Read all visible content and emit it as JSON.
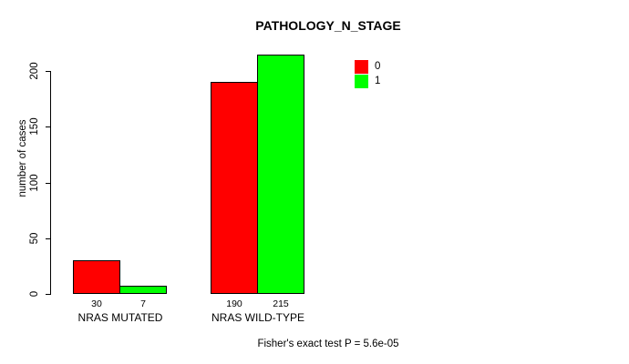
{
  "chart_data": {
    "type": "bar",
    "title": "PATHOLOGY_N_STAGE",
    "ylabel": "number of cases",
    "xlabel": "",
    "categories": [
      "NRAS MUTATED",
      "NRAS WILD-TYPE"
    ],
    "series": [
      {
        "name": "0",
        "color": "#ff0000",
        "values": [
          30,
          190
        ]
      },
      {
        "name": "1",
        "color": "#00ff00",
        "values": [
          7,
          215
        ]
      }
    ],
    "yticks": [
      0,
      50,
      100,
      150,
      200
    ],
    "ylim": [
      0,
      215
    ],
    "grid": false,
    "legend_position": "top-right",
    "bar_border_color": "#000000",
    "background_color": "#ffffff",
    "annotation": "Fisher's exact test P = 5.6e-05"
  }
}
